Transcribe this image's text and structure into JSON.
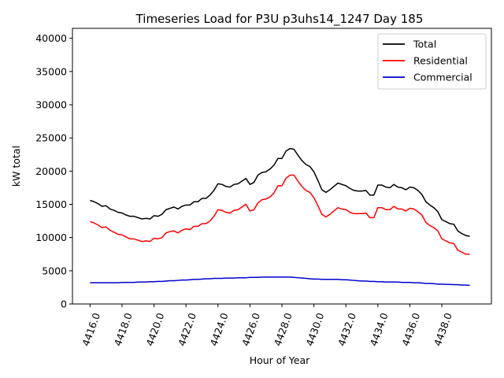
{
  "chart_data": {
    "type": "line",
    "title": "Timeseries Load for P3U p3uhs14_1247  Day 185",
    "xlabel": "Hour of Year",
    "ylabel": "kW total",
    "xlim": [
      4414.9,
      4441.1
    ],
    "ylim": [
      0,
      41500
    ],
    "xticks": [
      4416,
      4418,
      4420,
      4422,
      4424,
      4426,
      4428,
      4430,
      4432,
      4434,
      4436,
      4438
    ],
    "xtick_labels": [
      "4416.0",
      "4418.0",
      "4420.0",
      "4422.0",
      "4424.0",
      "4426.0",
      "4428.0",
      "4430.0",
      "4432.0",
      "4434.0",
      "4436.0",
      "4438.0"
    ],
    "yticks": [
      0,
      5000,
      10000,
      15000,
      20000,
      25000,
      30000,
      35000,
      40000
    ],
    "ytick_labels": [
      "0",
      "5000",
      "10000",
      "15000",
      "20000",
      "25000",
      "30000",
      "35000",
      "40000"
    ],
    "legend_position": "top-right",
    "grid": false,
    "x": [
      4416.0,
      4416.25,
      4416.5,
      4416.75,
      4417.0,
      4417.25,
      4417.5,
      4417.75,
      4418.0,
      4418.25,
      4418.5,
      4418.75,
      4419.0,
      4419.25,
      4419.5,
      4419.75,
      4420.0,
      4420.25,
      4420.5,
      4420.75,
      4421.0,
      4421.25,
      4421.5,
      4421.75,
      4422.0,
      4422.25,
      4422.5,
      4422.75,
      4423.0,
      4423.25,
      4423.5,
      4423.75,
      4424.0,
      4424.25,
      4424.5,
      4424.75,
      4425.0,
      4425.25,
      4425.5,
      4425.75,
      4426.0,
      4426.25,
      4426.5,
      4426.75,
      4427.0,
      4427.25,
      4427.5,
      4427.75,
      4428.0,
      4428.25,
      4428.5,
      4428.75,
      4429.0,
      4429.25,
      4429.5,
      4429.75,
      4430.0,
      4430.25,
      4430.5,
      4430.75,
      4431.0,
      4431.25,
      4431.5,
      4431.75,
      4432.0,
      4432.25,
      4432.5,
      4432.75,
      4433.0,
      4433.25,
      4433.5,
      4433.75,
      4434.0,
      4434.25,
      4434.5,
      4434.75,
      4435.0,
      4435.25,
      4435.5,
      4435.75,
      4436.0,
      4436.25,
      4436.5,
      4436.75,
      4437.0,
      4437.25,
      4437.5,
      4437.75,
      4438.0,
      4438.25,
      4438.5,
      4438.75,
      4439.0,
      4439.25,
      4439.5,
      4439.75
    ],
    "series": [
      {
        "name": "Total",
        "color": "#000000",
        "values": [
          15600,
          15400,
          15100,
          14700,
          14800,
          14300,
          14100,
          13800,
          13700,
          13400,
          13200,
          13200,
          13000,
          12800,
          12900,
          12800,
          13300,
          13200,
          13500,
          14200,
          14400,
          14600,
          14300,
          14700,
          14900,
          14900,
          15400,
          15400,
          15900,
          15900,
          16400,
          17100,
          18100,
          18000,
          17700,
          17600,
          18000,
          18100,
          18500,
          18900,
          18000,
          18300,
          19400,
          19800,
          19900,
          20300,
          20900,
          21900,
          21900,
          23000,
          23400,
          23300,
          22400,
          21600,
          21000,
          20700,
          19900,
          18600,
          17200,
          16800,
          17200,
          17700,
          18200,
          18000,
          17800,
          17400,
          17100,
          17000,
          17000,
          17100,
          16400,
          16400,
          17900,
          17900,
          17600,
          17500,
          18000,
          17600,
          17500,
          17200,
          17600,
          17500,
          17100,
          16500,
          15400,
          14900,
          14500,
          13900,
          12700,
          12400,
          12100,
          12000,
          11000,
          10600,
          10300,
          10200
        ]
      },
      {
        "name": "Residential",
        "color": "#ff0000",
        "values": [
          12400,
          12200,
          11900,
          11500,
          11600,
          11100,
          10800,
          10500,
          10400,
          10100,
          9800,
          9800,
          9600,
          9400,
          9500,
          9400,
          9900,
          9800,
          10000,
          10700,
          10900,
          11000,
          10700,
          11100,
          11300,
          11200,
          11700,
          11700,
          12100,
          12100,
          12500,
          13200,
          14200,
          14100,
          13800,
          13700,
          14100,
          14200,
          14600,
          15000,
          14000,
          14200,
          15200,
          15700,
          15800,
          16100,
          16700,
          17800,
          17800,
          18900,
          19400,
          19400,
          18500,
          17700,
          17100,
          16800,
          16000,
          14800,
          13500,
          13100,
          13500,
          14000,
          14500,
          14300,
          14200,
          13800,
          13600,
          13600,
          13600,
          13700,
          13000,
          13000,
          14500,
          14500,
          14200,
          14200,
          14700,
          14300,
          14300,
          14000,
          14400,
          14300,
          13900,
          13400,
          12300,
          11800,
          11500,
          11000,
          9800,
          9500,
          9200,
          9100,
          8100,
          7800,
          7500,
          7500
        ]
      },
      {
        "name": "Commercial",
        "color": "#0000cc",
        "values": [
          3200,
          3200,
          3200,
          3200,
          3200,
          3200,
          3200,
          3200,
          3250,
          3250,
          3250,
          3250,
          3300,
          3300,
          3300,
          3350,
          3350,
          3400,
          3400,
          3450,
          3500,
          3500,
          3550,
          3600,
          3600,
          3650,
          3700,
          3700,
          3750,
          3800,
          3800,
          3850,
          3850,
          3850,
          3900,
          3900,
          3900,
          3950,
          3950,
          3950,
          4000,
          4000,
          4000,
          4050,
          4050,
          4050,
          4050,
          4050,
          4050,
          4050,
          4050,
          4000,
          3950,
          3900,
          3850,
          3800,
          3750,
          3750,
          3700,
          3700,
          3700,
          3700,
          3700,
          3650,
          3650,
          3600,
          3550,
          3500,
          3450,
          3450,
          3400,
          3400,
          3350,
          3350,
          3300,
          3300,
          3300,
          3300,
          3250,
          3250,
          3250,
          3200,
          3200,
          3150,
          3100,
          3100,
          3050,
          3000,
          3000,
          2950,
          2950,
          2900,
          2900,
          2850,
          2850,
          2800
        ]
      }
    ]
  }
}
